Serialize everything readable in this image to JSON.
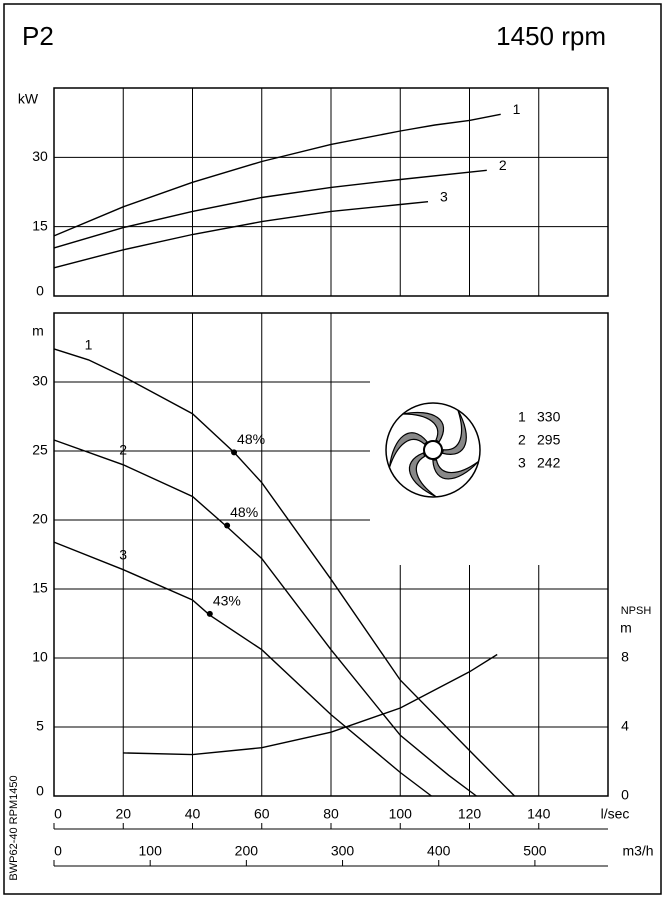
{
  "header": {
    "title": "P2",
    "speed": "1450 rpm"
  },
  "side_label": "BWP62-40 RPM1450",
  "impellers": [
    {
      "name": "1",
      "diameter": 330
    },
    {
      "name": "2",
      "diameter": 295
    },
    {
      "name": "3",
      "diameter": 242
    }
  ],
  "chart_data": [
    {
      "type": "line",
      "ylabel": "kW",
      "xlim": [
        0,
        160
      ],
      "xticks": [
        0,
        20,
        40,
        60,
        80,
        100,
        120,
        140
      ],
      "show_x_labels": false,
      "ylim": [
        0,
        45
      ],
      "yticks": [
        0,
        15,
        30
      ],
      "grid": true,
      "color": "#000000",
      "series": [
        {
          "name": "1",
          "x": [
            0,
            20,
            40,
            60,
            80,
            100,
            110,
            120,
            129
          ],
          "values": [
            13,
            19.3,
            24.6,
            29.1,
            32.8,
            35.7,
            37,
            38,
            39.3
          ]
        },
        {
          "name": "2",
          "x": [
            0,
            20,
            40,
            60,
            80,
            100,
            125
          ],
          "values": [
            10.4,
            14.8,
            18.3,
            21.3,
            23.5,
            25.2,
            27.2
          ]
        },
        {
          "name": "3",
          "x": [
            0,
            20,
            40,
            60,
            80,
            100,
            108
          ],
          "values": [
            6.1,
            10,
            13.3,
            16.1,
            18.3,
            19.8,
            20.4
          ]
        }
      ]
    },
    {
      "type": "line",
      "ylabel": "m",
      "xlabel": "l/sec",
      "x2label": "m3/h",
      "y2label": "NPSH",
      "y2unit": "m",
      "xlim": [
        0,
        160
      ],
      "xticks": [
        0,
        20,
        40,
        60,
        80,
        100,
        120,
        140
      ],
      "show_x_labels": true,
      "x2lim": [
        0,
        576
      ],
      "x2ticks": [
        0,
        100,
        200,
        300,
        400,
        500
      ],
      "ylim": [
        0,
        35
      ],
      "yticks": [
        0,
        5,
        10,
        15,
        20,
        25,
        30
      ],
      "y2lim": [
        0,
        28
      ],
      "y2ticks": [
        0,
        4,
        8
      ],
      "grid": true,
      "color": "#000000",
      "series": [
        {
          "name": "1",
          "x": [
            0,
            10,
            20,
            40,
            52,
            60,
            80,
            100,
            120,
            133
          ],
          "values": [
            32.4,
            31.6,
            30.4,
            27.7,
            24.9,
            22.7,
            15.7,
            8.4,
            3.3,
            0
          ]
        },
        {
          "name": "2",
          "x": [
            0,
            20,
            40,
            50,
            60,
            80,
            100,
            114,
            122
          ],
          "values": [
            25.8,
            24,
            21.7,
            19.5,
            17.2,
            10.6,
            4.4,
            1.5,
            0
          ]
        },
        {
          "name": "3",
          "x": [
            0,
            20,
            40,
            45,
            60,
            80,
            100,
            109
          ],
          "values": [
            18.4,
            16.4,
            14.2,
            13.1,
            10.6,
            5.9,
            1.7,
            0
          ]
        },
        {
          "axis": "y2",
          "x": [
            20,
            40,
            60,
            80,
            100,
            120,
            128
          ],
          "values": [
            2.5,
            2.4,
            2.8,
            3.7,
            5.1,
            7.2,
            8.2
          ]
        }
      ],
      "efficiency_points": {
        "x": [
          52,
          50,
          45
        ],
        "values": [
          24.9,
          19.6,
          13.2
        ],
        "efficiency": [
          48,
          48,
          43
        ],
        "value_labels": [
          "48%",
          "48%",
          "43%"
        ]
      }
    }
  ]
}
